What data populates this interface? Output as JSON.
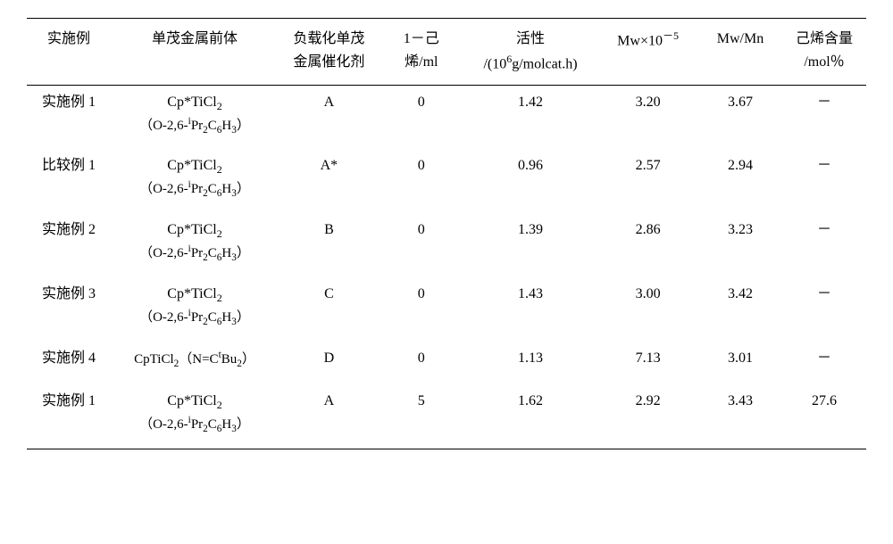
{
  "header": {
    "c1": "实施例",
    "c2": "单茂金属前体",
    "c3_l1": "负载化单茂",
    "c3_l2": "金属催化剂",
    "c4_l1": "1－己",
    "c4_l2": "烯/ml",
    "c5_l1": "活性",
    "c5_l2_pre": "/(10",
    "c5_l2_sup": "6",
    "c5_l2_post": "g/molcat.h)",
    "c6_pre": "Mw×10",
    "c6_sup": "－5",
    "c7": "Mw/Mn",
    "c8_l1": "己烯含量",
    "c8_l2": "/mol％"
  },
  "cpsticl2": "Cp*TiCl",
  "cpsticl2_sub": "2",
  "paren_open": "（O-2,6-",
  "ipr": "Pr",
  "ipr_sup": "i",
  "ipr_sub": "2",
  "ch": "C",
  "ch_sub1": "6",
  "hh": "H",
  "ch_sub2": "3",
  "paren_close": "）",
  "r1": {
    "ex": "实施例 1",
    "cat": "A",
    "hex": "0",
    "act": "1.42",
    "mw": "3.20",
    "mwmn": "3.67",
    "cont": "－"
  },
  "r2": {
    "ex": "比较例 1",
    "cat": "A*",
    "hex": "0",
    "act": "0.96",
    "mw": "2.57",
    "mwmn": "2.94",
    "cont": "－"
  },
  "r3": {
    "ex": "实施例 2",
    "cat": "B",
    "hex": "0",
    "act": "1.39",
    "mw": "2.86",
    "mwmn": "3.23",
    "cont": "－"
  },
  "r4": {
    "ex": "实施例 3",
    "cat": "C",
    "hex": "0",
    "act": "1.43",
    "mw": "3.00",
    "mwmn": "3.42",
    "cont": "－"
  },
  "r5": {
    "ex": "实施例 4",
    "cat": "D",
    "hex": "0",
    "act": "1.13",
    "mw": "7.13",
    "mwmn": "3.01",
    "cont": "－",
    "pre_a": "CpTiCl",
    "pre_a_sub": "2",
    "pre_b_open": "（N=C",
    "pre_b_sup": "t",
    "pre_b_mid": "Bu",
    "pre_b_sub": "2",
    "pre_b_close": "）"
  },
  "r6": {
    "ex": "实施例 1",
    "cat": "A",
    "hex": "5",
    "act": "1.62",
    "mw": "2.92",
    "mwmn": "3.43",
    "cont": "27.6"
  }
}
